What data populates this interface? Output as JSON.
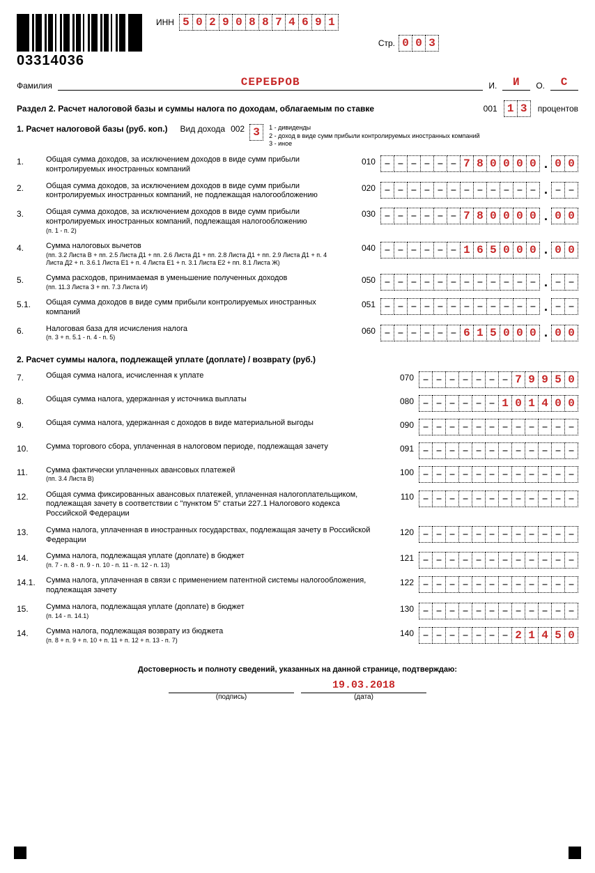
{
  "barcode_number": "03314036",
  "inn_label": "ИНН",
  "inn": [
    "5",
    "0",
    "2",
    "9",
    "0",
    "8",
    "8",
    "7",
    "4",
    "6",
    "9",
    "1"
  ],
  "page_label": "Стр.",
  "page": [
    "0",
    "0",
    "3"
  ],
  "surname_label": "Фамилия",
  "surname": "СЕРЕБРОВ",
  "i_label": "И.",
  "i_val": "И",
  "o_label": "О.",
  "o_val": "С",
  "section2_title": "Раздел 2. Расчет налоговой базы и суммы налога по доходам, облагаемым по ставке",
  "rate_code": "001",
  "rate": [
    "1",
    "3"
  ],
  "rate_suffix": "процентов",
  "sub1_title": "1. Расчет налоговой базы (руб. коп.)",
  "income_type_label": "Вид дохода",
  "income_type_code": "002",
  "income_type_val": "3",
  "income_legend": [
    "1 - дивиденды",
    "2 - доход в виде сумм прибыли контролируемых иностранных компаний",
    "3 - иное"
  ],
  "lines1": [
    {
      "n": "1.",
      "text": "Общая сумма доходов, за исключением доходов в виде сумм прибыли контролируемых иностранных компаний",
      "code": "010",
      "main": [
        "-",
        "-",
        "-",
        "-",
        "-",
        "-",
        "7",
        "8",
        "0",
        "0",
        "0",
        "0"
      ],
      "kop": [
        "0",
        "0"
      ]
    },
    {
      "n": "2.",
      "text": "Общая сумма доходов, за исключением доходов в виде сумм прибыли контролируемых иностранных компаний, не подлежащая налогообложению",
      "code": "020",
      "main": [
        "-",
        "-",
        "-",
        "-",
        "-",
        "-",
        "-",
        "-",
        "-",
        "-",
        "-",
        "-"
      ],
      "kop": [
        "-",
        "-"
      ]
    },
    {
      "n": "3.",
      "text": "Общая сумма доходов, за исключением доходов в виде сумм прибыли контролируемых иностранных компаний, подлежащая налогообложению",
      "sub": "(п. 1 - п. 2)",
      "code": "030",
      "main": [
        "-",
        "-",
        "-",
        "-",
        "-",
        "-",
        "7",
        "8",
        "0",
        "0",
        "0",
        "0"
      ],
      "kop": [
        "0",
        "0"
      ]
    },
    {
      "n": "4.",
      "text": "Сумма налоговых вычетов",
      "sub": "(пп. 3.2 Листа В + пп. 2.5 Листа Д1 + пп. 2.6 Листа Д1 + пп. 2.8 Листа Д1 + пп. 2.9 Листа Д1 + п. 4 Листа Д2 + п. 3.6.1 Листа Е1 + п. 4 Листа Е1 + п. 3.1 Листа Е2 + пп. 8.1 Листа Ж)",
      "code": "040",
      "main": [
        "-",
        "-",
        "-",
        "-",
        "-",
        "-",
        "1",
        "6",
        "5",
        "0",
        "0",
        "0"
      ],
      "kop": [
        "0",
        "0"
      ]
    },
    {
      "n": "5.",
      "text": "Сумма расходов, принимаемая в уменьшение полученных доходов",
      "sub": "(пп. 11.3 Листа З + пп. 7.3 Листа И)",
      "code": "050",
      "main": [
        "-",
        "-",
        "-",
        "-",
        "-",
        "-",
        "-",
        "-",
        "-",
        "-",
        "-",
        "-"
      ],
      "kop": [
        "-",
        "-"
      ]
    },
    {
      "n": "5.1.",
      "text": "Общая сумма доходов в виде сумм прибыли контролируемых иностранных компаний",
      "code": "051",
      "main": [
        "-",
        "-",
        "-",
        "-",
        "-",
        "-",
        "-",
        "-",
        "-",
        "-",
        "-",
        "-"
      ],
      "kop": [
        "-",
        "-"
      ]
    },
    {
      "n": "6.",
      "text": "Налоговая база для исчисления налога",
      "sub": "(п. 3 + п. 5.1 - п. 4 - п. 5)",
      "code": "060",
      "main": [
        "-",
        "-",
        "-",
        "-",
        "-",
        "-",
        "6",
        "1",
        "5",
        "0",
        "0",
        "0"
      ],
      "kop": [
        "0",
        "0"
      ]
    }
  ],
  "sub2_title": "2. Расчет суммы налога, подлежащей уплате (доплате) / возврату (руб.)",
  "lines2": [
    {
      "n": "7.",
      "text": "Общая сумма налога, исчисленная к уплате",
      "code": "070",
      "main": [
        "-",
        "-",
        "-",
        "-",
        "-",
        "-",
        "-",
        "7",
        "9",
        "9",
        "5",
        "0"
      ]
    },
    {
      "n": "8.",
      "text": "Общая сумма налога, удержанная у источника выплаты",
      "code": "080",
      "main": [
        "-",
        "-",
        "-",
        "-",
        "-",
        "-",
        "1",
        "0",
        "1",
        "4",
        "0",
        "0"
      ]
    },
    {
      "n": "9.",
      "text": "Общая сумма налога, удержанная с доходов в виде материальной выгоды",
      "code": "090",
      "main": [
        "-",
        "-",
        "-",
        "-",
        "-",
        "-",
        "-",
        "-",
        "-",
        "-",
        "-",
        "-"
      ]
    },
    {
      "n": "10.",
      "text": "Сумма торгового сбора, уплаченная в налоговом периоде, подлежащая зачету",
      "code": "091",
      "main": [
        "-",
        "-",
        "-",
        "-",
        "-",
        "-",
        "-",
        "-",
        "-",
        "-",
        "-",
        "-"
      ]
    },
    {
      "n": "11.",
      "text": "Сумма фактически уплаченных авансовых платежей",
      "sub": "(пп. 3.4 Листа В)",
      "code": "100",
      "main": [
        "-",
        "-",
        "-",
        "-",
        "-",
        "-",
        "-",
        "-",
        "-",
        "-",
        "-",
        "-"
      ]
    },
    {
      "n": "12.",
      "text": "Общая сумма фиксированных авансовых платежей, уплаченная налогоплательщиком, подлежащая зачету в соответствии с \"пунктом 5\" статьи 227.1 Налогового кодекса Российской Федерации",
      "code": "110",
      "main": [
        "-",
        "-",
        "-",
        "-",
        "-",
        "-",
        "-",
        "-",
        "-",
        "-",
        "-",
        "-"
      ]
    },
    {
      "n": "13.",
      "text": "Сумма налога, уплаченная в иностранных государствах, подлежащая зачету в Российской Федерации",
      "code": "120",
      "main": [
        "-",
        "-",
        "-",
        "-",
        "-",
        "-",
        "-",
        "-",
        "-",
        "-",
        "-",
        "-"
      ]
    },
    {
      "n": "14.",
      "text": "Сумма налога, подлежащая уплате (доплате) в бюджет",
      "sub": "(п. 7 - п. 8 - п. 9 - п. 10 - п. 11 - п. 12 - п. 13)",
      "code": "121",
      "main": [
        "-",
        "-",
        "-",
        "-",
        "-",
        "-",
        "-",
        "-",
        "-",
        "-",
        "-",
        "-"
      ]
    },
    {
      "n": "14.1.",
      "text": "Сумма налога, уплаченная в связи с применением патентной системы налогообложения, подлежащая зачету",
      "code": "122",
      "main": [
        "-",
        "-",
        "-",
        "-",
        "-",
        "-",
        "-",
        "-",
        "-",
        "-",
        "-",
        "-"
      ]
    },
    {
      "n": "15.",
      "text": "Сумма налога, подлежащая уплате (доплате) в бюджет",
      "sub": "(п. 14 - п. 14.1)",
      "code": "130",
      "main": [
        "-",
        "-",
        "-",
        "-",
        "-",
        "-",
        "-",
        "-",
        "-",
        "-",
        "-",
        "-"
      ]
    },
    {
      "n": "14.",
      "text": "Сумма налога, подлежащая возврату из бюджета",
      "sub": "(п. 8 + п. 9 + п. 10 + п. 11 + п. 12 + п. 13 - п. 7)",
      "code": "140",
      "main": [
        "-",
        "-",
        "-",
        "-",
        "-",
        "-",
        "-",
        "2",
        "1",
        "4",
        "5",
        "0"
      ]
    }
  ],
  "footer_text": "Достоверность и полноту сведений, указанных на данной странице, подтверждаю:",
  "sign_label": "(подпись)",
  "date_val": "19.03.2018",
  "date_label": "(дата)"
}
